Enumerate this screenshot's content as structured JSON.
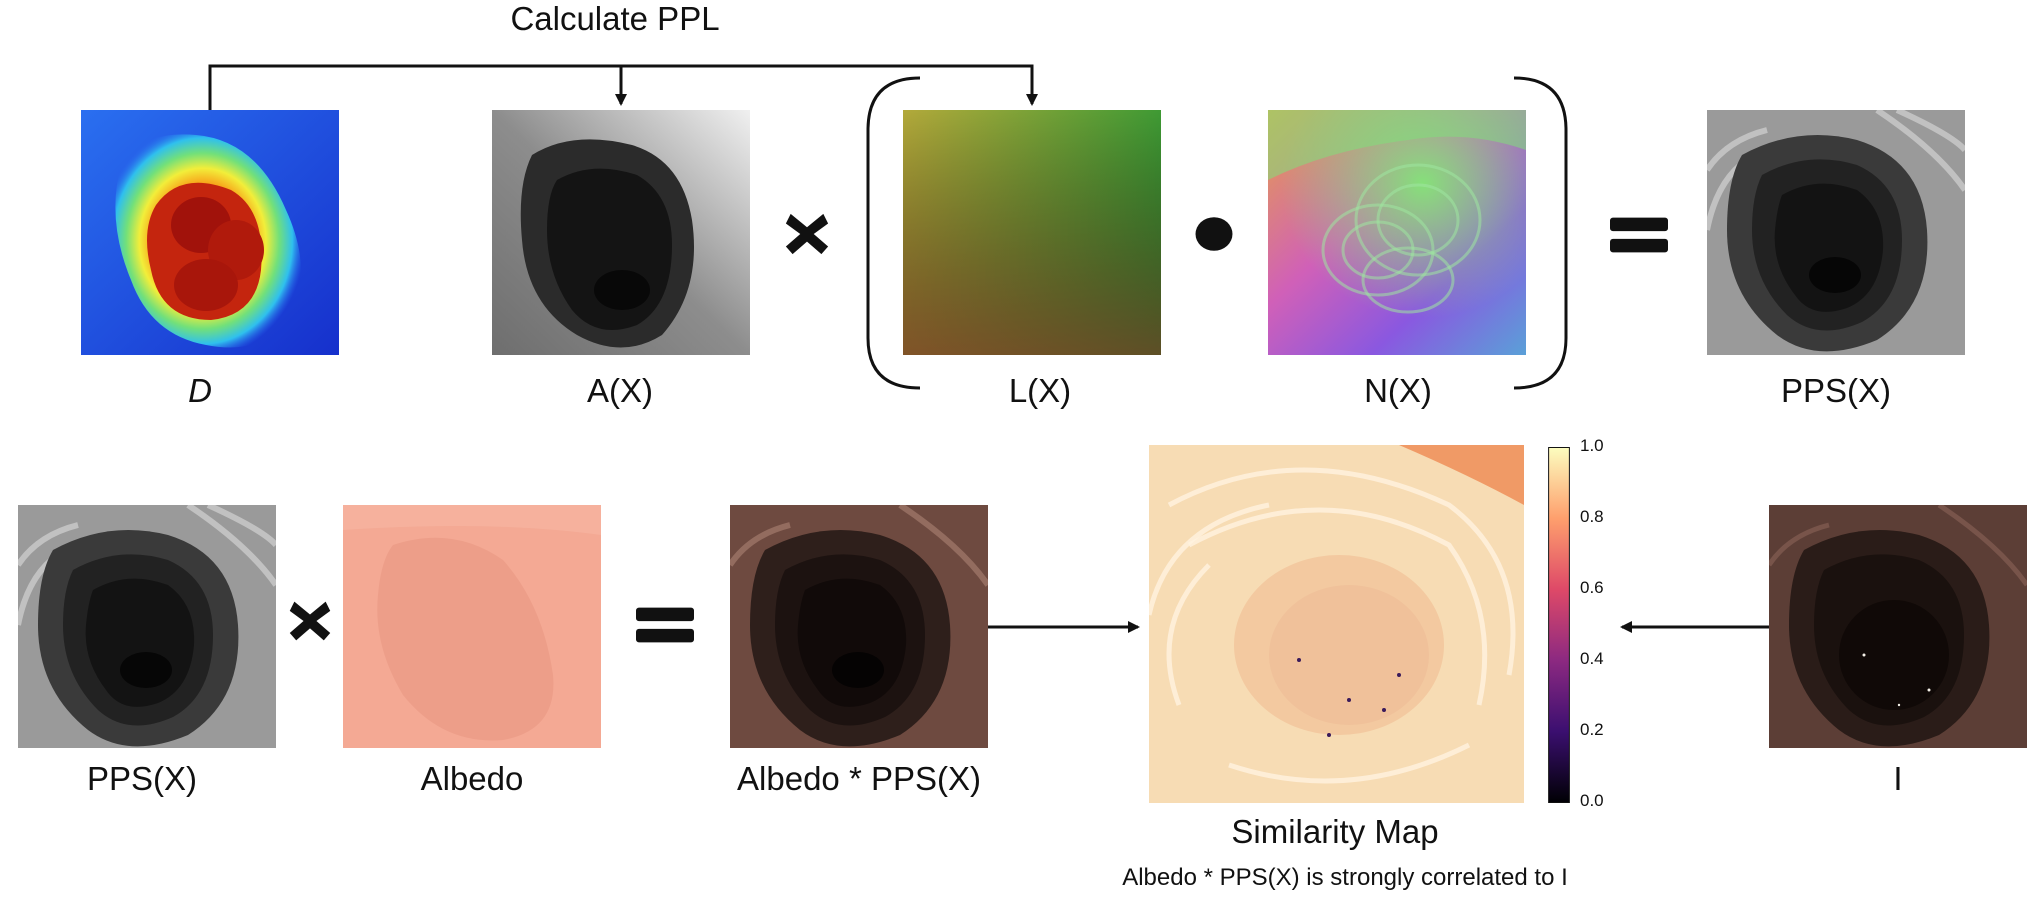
{
  "top_title": "Calculate PPL",
  "labels": {
    "depth": "D",
    "albedo_x": "A(X)",
    "light": "L(X)",
    "normal": "N(X)",
    "pps_top": "PPS(X)",
    "pps_bottom": "PPS(X)",
    "albedo": "Albedo",
    "product": "Albedo * PPS(X)",
    "image": "I",
    "similarity": "Similarity Map",
    "caption": "Albedo * PPS(X) is strongly correlated to I"
  },
  "colorbar": {
    "ticks": [
      "1.0",
      "0.8",
      "0.6",
      "0.4",
      "0.2",
      "0.0"
    ],
    "range": [
      0.0,
      1.0
    ],
    "colormap": "magma"
  },
  "operators": {
    "multiply": "cross",
    "dot": "dot",
    "equals": "equals"
  },
  "colors": {
    "ink": "#111111",
    "depth_blue": "#1b33d8",
    "depth_red": "#b81a0c",
    "skin": "#f2a58e",
    "similarity_bg": "#f6d9b0"
  }
}
